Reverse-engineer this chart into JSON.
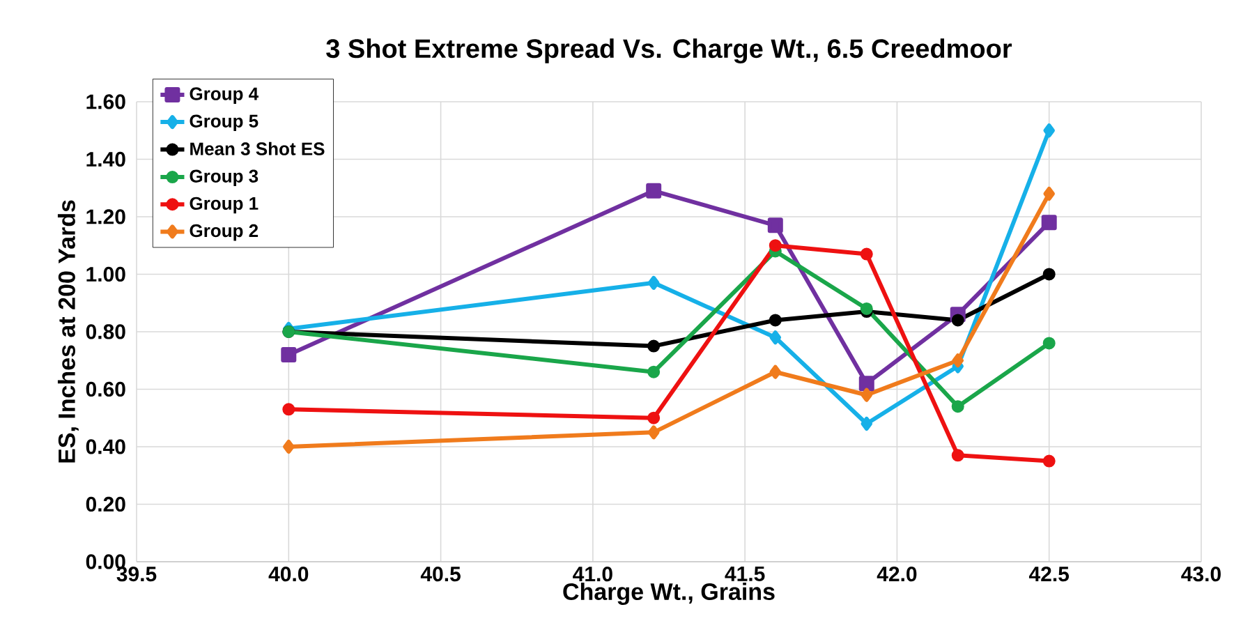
{
  "chart_data": {
    "type": "line",
    "title": "3 Shot Extreme Spread Vs. Charge Wt., 6.5 Creedmoor",
    "xlabel": "Charge Wt., Grains",
    "ylabel": "ES, Inches at 200 Yards",
    "x": [
      40.0,
      41.2,
      41.6,
      41.9,
      42.2,
      42.5
    ],
    "series": [
      {
        "name": "Group 4",
        "color": "#7030a0",
        "marker": "square",
        "values": [
          0.72,
          1.29,
          1.17,
          0.62,
          0.86,
          1.18
        ]
      },
      {
        "name": "Group 5",
        "color": "#16b0e8",
        "marker": "diamond",
        "values": [
          0.81,
          0.97,
          0.78,
          0.48,
          0.68,
          1.5
        ]
      },
      {
        "name": "Mean 3 Shot ES",
        "color": "#000000",
        "marker": "circle",
        "values": [
          0.8,
          0.75,
          0.84,
          0.87,
          0.84,
          1.0
        ]
      },
      {
        "name": "Group 3",
        "color": "#1aa64a",
        "marker": "circle",
        "values": [
          0.8,
          0.66,
          1.08,
          0.88,
          0.54,
          0.76
        ]
      },
      {
        "name": "Group 1",
        "color": "#ee1111",
        "marker": "circle",
        "values": [
          0.53,
          0.5,
          1.1,
          1.07,
          0.37,
          0.35
        ]
      },
      {
        "name": "Group 2",
        "color": "#f07b1c",
        "marker": "diamond",
        "values": [
          0.4,
          0.45,
          0.66,
          0.58,
          0.7,
          1.28
        ]
      }
    ],
    "xlim": [
      39.5,
      43.0
    ],
    "xticks": [
      {
        "value": 39.5,
        "label": "39.5"
      },
      {
        "value": 40.0,
        "label": "40.0"
      },
      {
        "value": 40.5,
        "label": "40.5"
      },
      {
        "value": 41.0,
        "label": "41.0"
      },
      {
        "value": 41.5,
        "label": "41.5"
      },
      {
        "value": 42.0,
        "label": "42.0"
      },
      {
        "value": 42.5,
        "label": "42.5"
      },
      {
        "value": 43.0,
        "label": "43.0"
      }
    ],
    "ylim": [
      0,
      1.6
    ],
    "yticks": [
      {
        "value": 0,
        "label": "0.00"
      },
      {
        "value": 0.2,
        "label": "0.20"
      },
      {
        "value": 0.4,
        "label": "0.40"
      },
      {
        "value": 0.6,
        "label": "0.60"
      },
      {
        "value": 0.8,
        "label": "0.80"
      },
      {
        "value": 1.0,
        "label": "1.00"
      },
      {
        "value": 1.2,
        "label": "1.20"
      },
      {
        "value": 1.4,
        "label": "1.40"
      },
      {
        "value": 1.6,
        "label": "1.60"
      }
    ],
    "grid": true,
    "legend": "top left",
    "line_style": "solid"
  }
}
